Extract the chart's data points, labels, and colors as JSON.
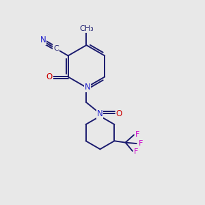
{
  "bg_color": "#e8e8e8",
  "bond_color": "#1a1a6e",
  "N_color": "#2020cc",
  "O_color": "#cc0000",
  "F_color": "#cc00cc",
  "figsize": [
    3.0,
    3.0
  ],
  "dpi": 100,
  "xlim": [
    0,
    10
  ],
  "ylim": [
    0,
    10
  ],
  "bond_lw": 1.4,
  "font_size": 8.5
}
